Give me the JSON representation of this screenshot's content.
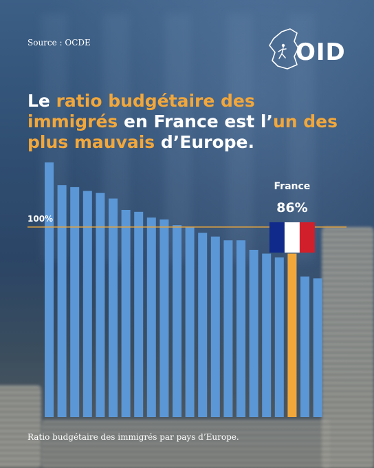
{
  "source": "Source : OCDE",
  "logo": {
    "text": "OID"
  },
  "headline": {
    "parts": [
      {
        "text": "Le ",
        "highlight": false
      },
      {
        "text": "ratio budgétaire des immigrés",
        "highlight": true
      },
      {
        "text": " en France est l’",
        "highlight": false
      },
      {
        "text": "un des plus mauvais",
        "highlight": true
      },
      {
        "text": " d’Europe.",
        "highlight": false
      }
    ]
  },
  "footer": "Ratio budgétaire des immigrés par pays d’Europe.",
  "colors": {
    "bar": "#5b97d6",
    "highlight": "#f2a73b",
    "text": "#ffffff",
    "reference_line": "#e6a43c"
  },
  "chart_data": {
    "type": "bar",
    "values": [
      134,
      122,
      121,
      119,
      118,
      115,
      109,
      108,
      105,
      104,
      101,
      100,
      97,
      95,
      93,
      93,
      88,
      86,
      84,
      86,
      74,
      73
    ],
    "highlight_index": 19,
    "highlight_label": "France",
    "highlight_value_label": "86%",
    "reference_value": 100,
    "reference_label": "100%",
    "ylim": [
      0,
      134
    ],
    "grid": false,
    "title": "",
    "xlabel": "",
    "ylabel": ""
  }
}
